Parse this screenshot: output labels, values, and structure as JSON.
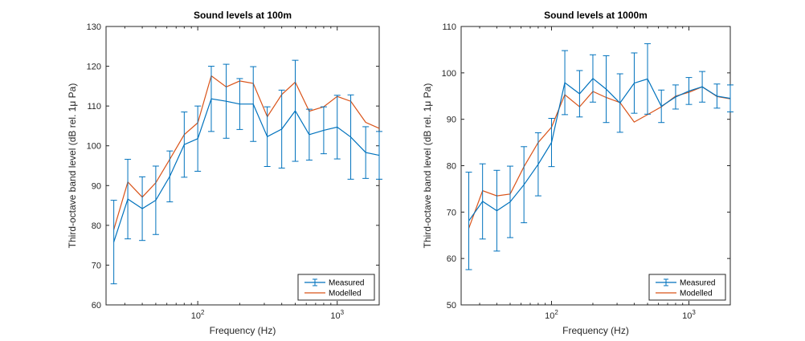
{
  "figure": {
    "background": "#ffffff",
    "colors": {
      "measured": "#0072BD",
      "modelled": "#D95319",
      "axis": "#262626"
    }
  },
  "chart_data": [
    {
      "type": "line",
      "title": "Sound levels at 100m",
      "xlabel": "Frequency (Hz)",
      "ylabel": "Third-octave band level (dB rel. 1μ Pa)",
      "xscale": "log",
      "xlim": [
        22,
        2000
      ],
      "ylim": [
        60,
        130
      ],
      "yticks": [
        60,
        70,
        80,
        90,
        100,
        110,
        120,
        130
      ],
      "xticks": [
        {
          "value": 100,
          "base": "10",
          "exp": "2"
        },
        {
          "value": 1000,
          "base": "10",
          "exp": "3"
        }
      ],
      "legend": {
        "location": "bottom-right",
        "entries": [
          "Measured",
          "Modelled"
        ]
      },
      "x": [
        25,
        31.5,
        40,
        50,
        63,
        80,
        100,
        125,
        160,
        200,
        250,
        315,
        400,
        500,
        630,
        800,
        1000,
        1250,
        1600,
        2000
      ],
      "series": [
        {
          "name": "Measured",
          "style": "errorbar",
          "values": [
            75.8,
            86.6,
            84.2,
            86.3,
            92.3,
            100.3,
            101.8,
            111.8,
            111.2,
            110.5,
            110.5,
            102.3,
            104.2,
            108.8,
            102.8,
            103.9,
            104.7,
            102.2,
            98.3,
            97.6
          ],
          "err": [
            10.5,
            10,
            8,
            8.6,
            6.4,
            8.2,
            8.2,
            8.2,
            9.3,
            6.4,
            9.4,
            7.5,
            9.8,
            12.7,
            6.4,
            5.9,
            8,
            10.6,
            6.5,
            6
          ]
        },
        {
          "name": "Modelled",
          "style": "line",
          "values": [
            78.9,
            90.9,
            87.1,
            90.7,
            96.6,
            102.8,
            105.8,
            117.6,
            114.8,
            116.3,
            115.7,
            107.3,
            112.9,
            116,
            108.7,
            109.8,
            112.4,
            111.2,
            105.9,
            104.4
          ]
        }
      ]
    },
    {
      "type": "line",
      "title": "Sound levels at 1000m",
      "xlabel": "Frequency (Hz)",
      "ylabel": "Third-octave band level (dB rel. 1μ Pa)",
      "xscale": "log",
      "xlim": [
        22,
        2000
      ],
      "ylim": [
        50,
        110
      ],
      "yticks": [
        50,
        60,
        70,
        80,
        90,
        100,
        110
      ],
      "xticks": [
        {
          "value": 100,
          "base": "10",
          "exp": "2"
        },
        {
          "value": 1000,
          "base": "10",
          "exp": "3"
        }
      ],
      "legend": {
        "location": "bottom-right",
        "entries": [
          "Measured",
          "Modelled"
        ]
      },
      "x": [
        25,
        31.5,
        40,
        50,
        63,
        80,
        100,
        125,
        160,
        200,
        250,
        315,
        400,
        500,
        630,
        800,
        1000,
        1250,
        1600,
        2000
      ],
      "series": [
        {
          "name": "Measured",
          "style": "errorbar",
          "values": [
            68.1,
            72.3,
            70.3,
            72.2,
            75.9,
            80.3,
            85,
            97.9,
            95.5,
            98.8,
            96.5,
            93.5,
            97.8,
            98.7,
            92.8,
            94.8,
            96.1,
            97,
            95,
            94.5
          ],
          "err": [
            10.5,
            8.1,
            8.7,
            7.7,
            8.2,
            6.8,
            5.2,
            6.9,
            5,
            5.1,
            7.2,
            6.3,
            6.5,
            7.6,
            3.5,
            2.6,
            2.9,
            3.3,
            2.6,
            2.9
          ]
        },
        {
          "name": "Modelled",
          "style": "line",
          "values": [
            66.5,
            74.6,
            73.5,
            73.9,
            79.8,
            85,
            88.3,
            95.3,
            92.7,
            96,
            94.7,
            93.6,
            89.4,
            91,
            92.7,
            95,
            95.8,
            97,
            94.9,
            94.4
          ]
        }
      ]
    }
  ]
}
